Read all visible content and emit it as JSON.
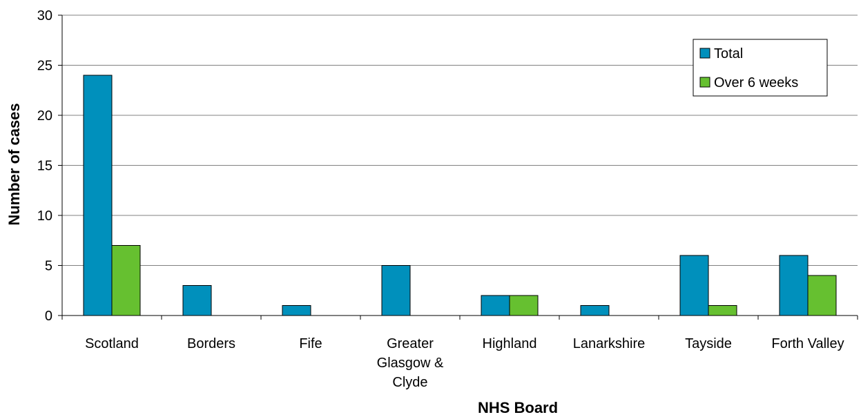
{
  "chart_data": {
    "type": "bar",
    "categories": [
      [
        "Scotland"
      ],
      [
        "Borders"
      ],
      [
        "Fife"
      ],
      [
        "Greater",
        "Glasgow &",
        "Clyde"
      ],
      [
        "Highland"
      ],
      [
        "Lanarkshire"
      ],
      [
        "Tayside"
      ],
      [
        "Forth Valley"
      ]
    ],
    "series": [
      {
        "name": "Total",
        "values": [
          24,
          3,
          1,
          5,
          2,
          1,
          6,
          6
        ],
        "color": "#0090BC"
      },
      {
        "name": "Over 6 weeks",
        "values": [
          7,
          0,
          0,
          0,
          2,
          0,
          1,
          4
        ],
        "color": "#66C030"
      }
    ],
    "title": "",
    "xlabel": "NHS Board",
    "ylabel": "Number of cases",
    "ylim": [
      0,
      30
    ],
    "yticks": [
      0,
      5,
      10,
      15,
      20,
      25,
      30
    ],
    "grid": true,
    "legend_position": "top-right"
  }
}
